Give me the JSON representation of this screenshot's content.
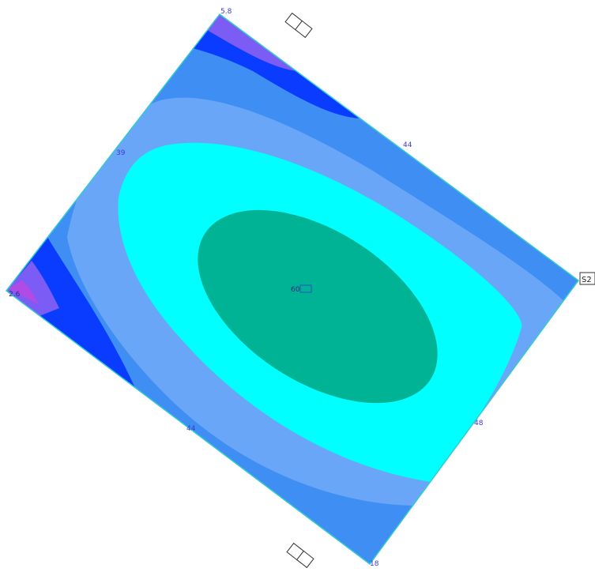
{
  "colors": {
    "band_outer": "#3f8ef4",
    "band_mid": "#6aa6f8",
    "band_inner": "#00ffff",
    "core": "#00b394",
    "deep_blue": "#0a3cff",
    "violet": "#7b5cf5",
    "magenta": "#b14be6",
    "edge": "#33cccc"
  },
  "labels": {
    "top_corner": "5.8",
    "left_edge": "39",
    "top_right_edge": "44",
    "center": "60",
    "left_corner": "2.6",
    "bottom_left_edge": "44",
    "right_lower_edge": "48",
    "bottom_corner": "18"
  },
  "markers": {
    "s2": "S2"
  }
}
